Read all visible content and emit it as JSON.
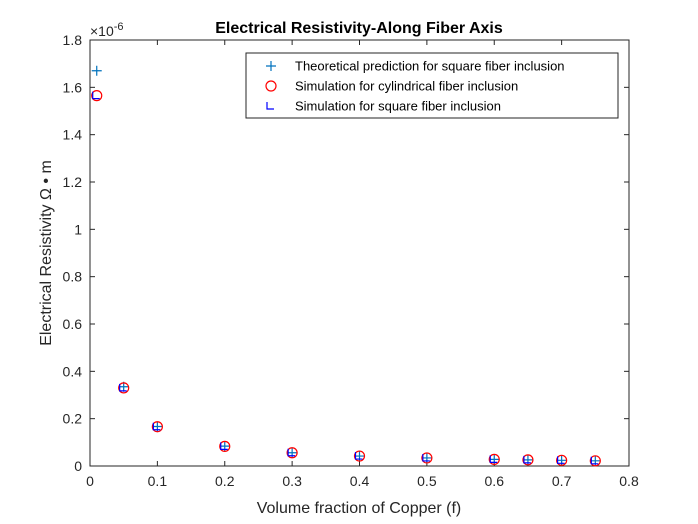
{
  "chart_data": {
    "type": "scatter",
    "title": "Electrical Resistivity-Along Fiber Axis",
    "xlabel": "Volume fraction of Copper (f)",
    "ylabel": "Electrical Resistivity Ω • m",
    "y_exponent_label": "×10",
    "y_exponent_power": "-6",
    "xlim": [
      0,
      0.8
    ],
    "ylim": [
      0,
      1.8
    ],
    "y_multiplier": 1e-06,
    "x_ticks": [
      0,
      0.1,
      0.2,
      0.3,
      0.4,
      0.5,
      0.6,
      0.7,
      0.8
    ],
    "x_tick_labels": [
      "0",
      "0.1",
      "0.2",
      "0.3",
      "0.4",
      "0.5",
      "0.6",
      "0.7",
      "0.8"
    ],
    "y_ticks": [
      0,
      0.2,
      0.4,
      0.6,
      0.8,
      1.0,
      1.2,
      1.4,
      1.6,
      1.8
    ],
    "y_tick_labels": [
      "0",
      "0.2",
      "0.4",
      "0.6",
      "0.8",
      "1",
      "1.2",
      "1.4",
      "1.6",
      "1.8"
    ],
    "grid": false,
    "legend_position": "top-right",
    "series": [
      {
        "name": "Theoretical prediction for square fiber inclusion",
        "marker": "plus",
        "color": "#0072BD",
        "x": [
          0.01,
          0.05,
          0.1,
          0.2,
          0.3,
          0.4,
          0.5,
          0.6,
          0.65,
          0.7,
          0.75
        ],
        "y": [
          1.67,
          0.335,
          0.167,
          0.084,
          0.056,
          0.042,
          0.034,
          0.028,
          0.026,
          0.024,
          0.022
        ]
      },
      {
        "name": "Simulation for cylindrical fiber inclusion",
        "marker": "circle",
        "color": "#FF0000",
        "x": [
          0.01,
          0.05,
          0.1,
          0.2,
          0.3,
          0.4,
          0.5,
          0.6,
          0.65,
          0.7,
          0.75
        ],
        "y": [
          1.565,
          0.33,
          0.166,
          0.083,
          0.056,
          0.042,
          0.034,
          0.028,
          0.026,
          0.024,
          0.022
        ]
      },
      {
        "name": "Simulation for square fiber inclusion",
        "marker": "corner",
        "color": "#0000FF",
        "x": [
          0.01,
          0.05,
          0.1,
          0.2,
          0.3,
          0.4,
          0.5,
          0.6,
          0.65,
          0.7,
          0.75
        ],
        "y": [
          1.565,
          0.33,
          0.166,
          0.083,
          0.056,
          0.042,
          0.034,
          0.028,
          0.026,
          0.024,
          0.022
        ]
      }
    ]
  }
}
